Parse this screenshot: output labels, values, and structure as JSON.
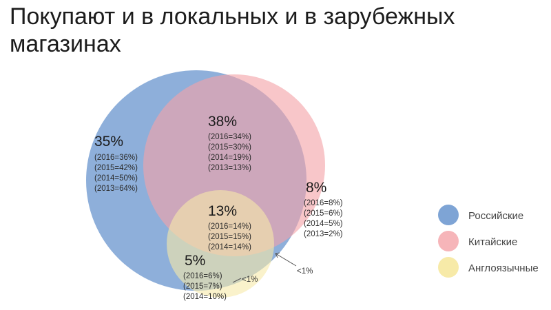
{
  "title": "Покупают и в локальных и в зарубежных магазинах",
  "colors": {
    "russian": "#7ea4d5",
    "chinese": "#f4a3a8",
    "english": "#f7eaa8"
  },
  "regions": {
    "russian_only": {
      "pct": "35%",
      "history": [
        "(2016=36%)",
        "(2015=42%)",
        "(2014=50%)",
        "(2013=64%)"
      ]
    },
    "russian_chinese": {
      "pct": "38%",
      "history": [
        "(2016=34%)",
        "(2015=30%)",
        "(2014=19%)",
        "(2013=13%)"
      ]
    },
    "chinese_only": {
      "pct": "8%",
      "history": [
        "(2016=8%)",
        "(2015=6%)",
        "(2014=5%)",
        "(2013=2%)"
      ]
    },
    "all_three": {
      "pct": "13%",
      "history": [
        "(2016=14%)",
        "(2015=15%)",
        "(2014=14%)"
      ]
    },
    "russian_english": {
      "pct": "5%",
      "history": [
        "(2016=6%)",
        "(2015=7%)",
        "(2014=10%)"
      ]
    }
  },
  "notes": {
    "chinese_english": "<1%",
    "english_only": "<1%"
  },
  "legend": [
    {
      "label": "Российские",
      "color": "#7ea4d5"
    },
    {
      "label": "Китайские",
      "color": "#f4a3a8"
    },
    {
      "label": "Англоязычные",
      "color": "#f7eaa8"
    }
  ]
}
